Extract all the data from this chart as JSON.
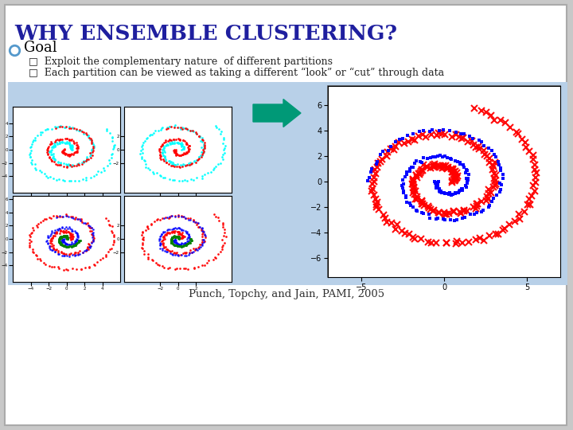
{
  "title": "WHY ENSEMBLE CLUSTERING?",
  "title_color": "#1F1F9F",
  "slide_bg": "#FFFFFF",
  "outer_bg": "#C8C8C8",
  "panel_bg": "#B8D0E8",
  "goal_text": "Goal",
  "bullet1": "Exploit the complementary nature  of different partitions",
  "bullet2": "Each partition can be viewed as taking a different “look” or “cut” through data",
  "caption": "Punch, Topchy, and Jain, PAMI, 2005",
  "arrow_color": "#009977"
}
